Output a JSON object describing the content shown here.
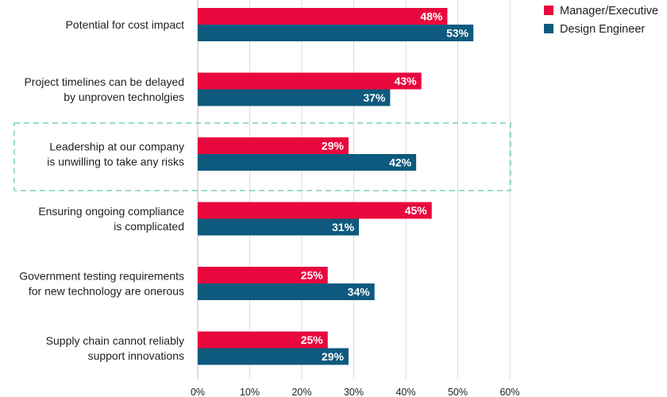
{
  "chart_data": {
    "type": "bar",
    "orientation": "horizontal",
    "categories": [
      [
        "Potential for cost impact"
      ],
      [
        "Project timelines can be delayed",
        "by unproven technolgies"
      ],
      [
        "Leadership at our company",
        "is unwilling to take any risks"
      ],
      [
        "Ensuring ongoing compliance",
        "is complicated"
      ],
      [
        "Government testing requirements",
        "for new technology are onerous"
      ],
      [
        "Supply chain cannot reliably",
        "support innovations"
      ]
    ],
    "series": [
      {
        "name": "Manager/Executive",
        "color": "#e8083e",
        "values": [
          48,
          43,
          29,
          45,
          25,
          25
        ]
      },
      {
        "name": "Design Engineer",
        "color": "#0e5a7e",
        "values": [
          53,
          37,
          42,
          31,
          34,
          29
        ]
      }
    ],
    "value_suffix": "%",
    "xlim": [
      0,
      60
    ],
    "xticks": [
      0,
      10,
      20,
      30,
      40,
      50,
      60
    ],
    "grid": true,
    "legend_position": "top-right",
    "highlight_category_index": 2,
    "highlight_color": "#7dcfc4",
    "title": "",
    "xlabel": "",
    "ylabel": ""
  }
}
